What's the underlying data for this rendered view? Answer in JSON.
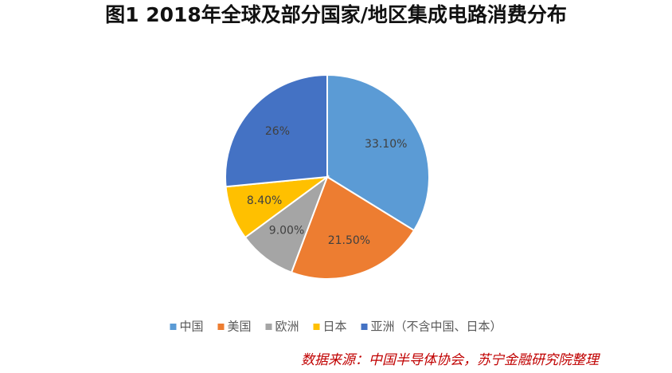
{
  "chart_data": {
    "type": "pie",
    "title": "图1 2018年全球及部分国家/地区集成电路消费分布",
    "categories": [
      "中国",
      "美国",
      "欧洲",
      "日本",
      "亚洲（不含中国、日本）"
    ],
    "values": [
      33.1,
      21.5,
      9,
      8.4,
      26
    ],
    "value_labels": [
      "33.10%",
      "21.50%",
      "9.00%",
      "8.40%",
      "26%"
    ],
    "colors": [
      "#5b9bd5",
      "#ed7d31",
      "#a5a5a5",
      "#ffc000",
      "#4472c4"
    ],
    "legend": "bottom",
    "source": "数据来源：中国半导体协会，苏宁金融研究院整理"
  }
}
